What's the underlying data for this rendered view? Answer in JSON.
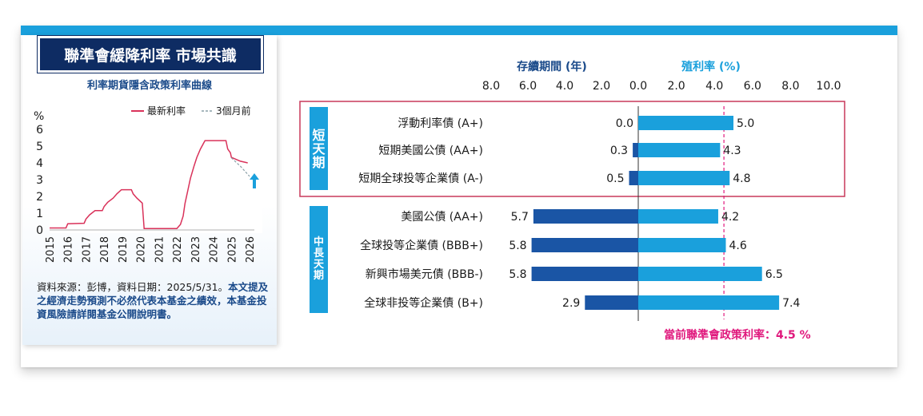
{
  "left": {
    "title": "聯準會緩降利率 市場共識",
    "subtitle": "利率期貨隱含政策利率曲線",
    "unit": "%",
    "legend_latest": "最新利率",
    "legend_3m": "3個月前",
    "source_plain": "資料來源：彭博，資料日期：2025/5/31。",
    "source_highlight": "本文提及之經濟走勢預測不必然代表本基金之績效，本基金投資風險請詳閱基金公開說明書。",
    "colors": {
      "latest": "#d9325a",
      "three_months": "#8aa0a8",
      "arrow": "#1aa0dc"
    }
  },
  "right": {
    "duration_header": "存續期間 (年)",
    "yield_header": "殖利率 (%)",
    "short_group": "短天期",
    "mid_group": "中長天期",
    "policy_note": "當前聯準會政策利率：4.5 %",
    "colors": {
      "duration": "#1a55a5",
      "yield": "#1aa0dc",
      "policy_line": "#e0197d",
      "frame": "#c8385a"
    }
  },
  "chart_data": [
    {
      "type": "line",
      "title": "利率期貨隱含政策利率曲線",
      "ylabel": "%",
      "ylim": [
        0,
        6
      ],
      "yticks": [
        "0",
        "1",
        "2",
        "3",
        "4",
        "5",
        "6"
      ],
      "xticks": [
        "2015",
        "2016",
        "2017",
        "2018",
        "2019",
        "2020",
        "2021",
        "2022",
        "2023",
        "2024",
        "2025",
        "2026"
      ],
      "series": [
        {
          "name": "最新利率",
          "x": [
            2015.0,
            2015.9,
            2016.0,
            2016.9,
            2017.0,
            2017.2,
            2017.5,
            2017.9,
            2018.0,
            2018.2,
            2018.5,
            2018.7,
            2018.95,
            2019.5,
            2019.6,
            2019.8,
            2020.1,
            2020.2,
            2022.0,
            2022.2,
            2022.35,
            2022.45,
            2022.6,
            2022.75,
            2022.95,
            2023.1,
            2023.3,
            2023.55,
            2024.7,
            2024.8,
            2024.95,
            2025.0,
            2025.5,
            2025.9
          ],
          "y": [
            0.12,
            0.12,
            0.37,
            0.4,
            0.65,
            0.9,
            1.15,
            1.15,
            1.4,
            1.65,
            1.9,
            2.15,
            2.4,
            2.4,
            2.15,
            1.9,
            1.6,
            0.08,
            0.08,
            0.33,
            0.83,
            1.58,
            2.33,
            3.08,
            3.83,
            4.33,
            4.83,
            5.33,
            5.33,
            4.83,
            4.6,
            4.33,
            4.1,
            4.0
          ]
        },
        {
          "name": "3個月前",
          "x": [
            2025.0,
            2025.5,
            2026.0
          ],
          "y": [
            4.3,
            3.8,
            3.2
          ]
        }
      ]
    },
    {
      "type": "bar",
      "title": "",
      "x_axis_duration": {
        "label": "存續期間 (年)",
        "ticks": [
          "8.0",
          "6.0",
          "4.0",
          "2.0",
          "0.0"
        ],
        "range": [
          0,
          8
        ]
      },
      "x_axis_yield": {
        "label": "殖利率 (%)",
        "ticks": [
          "0.0",
          "2.0",
          "4.0",
          "6.0",
          "8.0",
          "10.0"
        ],
        "range": [
          0,
          10
        ]
      },
      "policy_rate": 4.5,
      "categories": [
        "浮動利率債 (A+)",
        "短期美國公債 (AA+)",
        "短期全球投等企業債 (A-)",
        "美國公債 (AA+)",
        "全球投等企業債 (BBB+)",
        "新興市場美元債 (BBB-)",
        "全球非投等企業債 (B+)"
      ],
      "groups": [
        "短天期",
        "短天期",
        "短天期",
        "中長天期",
        "中長天期",
        "中長天期",
        "中長天期"
      ],
      "series": [
        {
          "name": "存續期間 (年)",
          "values": [
            0.0,
            0.3,
            0.5,
            5.7,
            5.8,
            5.8,
            2.9
          ],
          "labels": [
            "0.0",
            "0.3",
            "0.5",
            "5.7",
            "5.8",
            "5.8",
            "2.9"
          ]
        },
        {
          "name": "殖利率 (%)",
          "values": [
            5.0,
            4.3,
            4.8,
            4.2,
            4.6,
            6.5,
            7.4
          ],
          "labels": [
            "5.0",
            "4.3",
            "4.8",
            "4.2",
            "4.6",
            "6.5",
            "7.4"
          ]
        }
      ]
    }
  ]
}
